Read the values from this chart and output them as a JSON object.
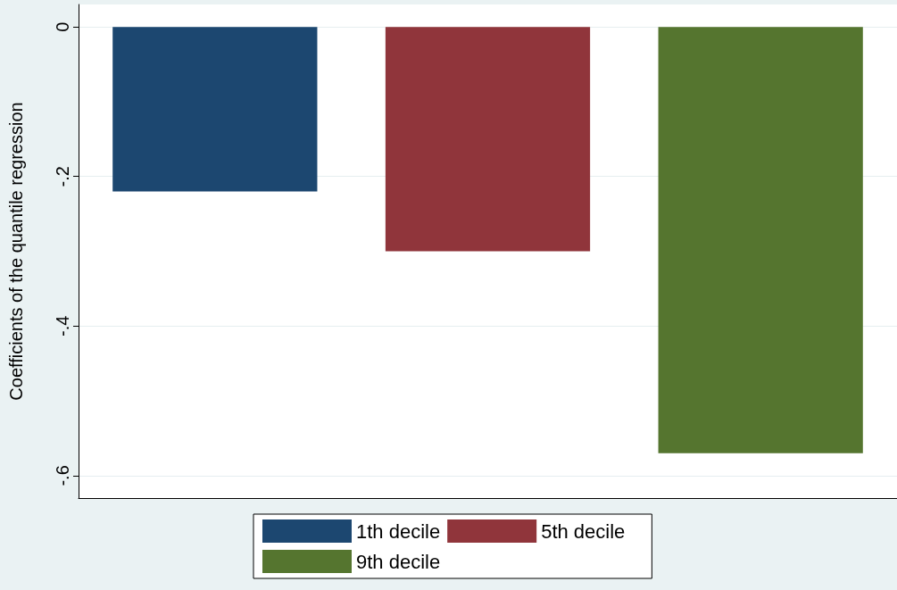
{
  "chart_data": {
    "type": "bar",
    "ylabel": "Coefficients of the quantile regression",
    "categories": [
      null,
      null,
      null
    ],
    "stacked": true,
    "series": [
      {
        "name": "1th decile",
        "color": "#1c4770",
        "values": [
          -0.22,
          null,
          null
        ]
      },
      {
        "name": "5th decile",
        "color": "#90353b",
        "values": [
          null,
          -0.3,
          null
        ]
      },
      {
        "name": "9th decile",
        "color": "#55752f",
        "values": [
          null,
          null,
          -0.57
        ]
      }
    ],
    "ylim": [
      -0.63,
      0.03
    ],
    "yticks": [
      {
        "value": 0,
        "label": "0"
      },
      {
        "value": -0.2,
        "label": "-.2"
      },
      {
        "value": -0.4,
        "label": "-.4"
      },
      {
        "value": -0.6,
        "label": "-.6"
      }
    ],
    "grid": "y",
    "legend": "bottom"
  }
}
